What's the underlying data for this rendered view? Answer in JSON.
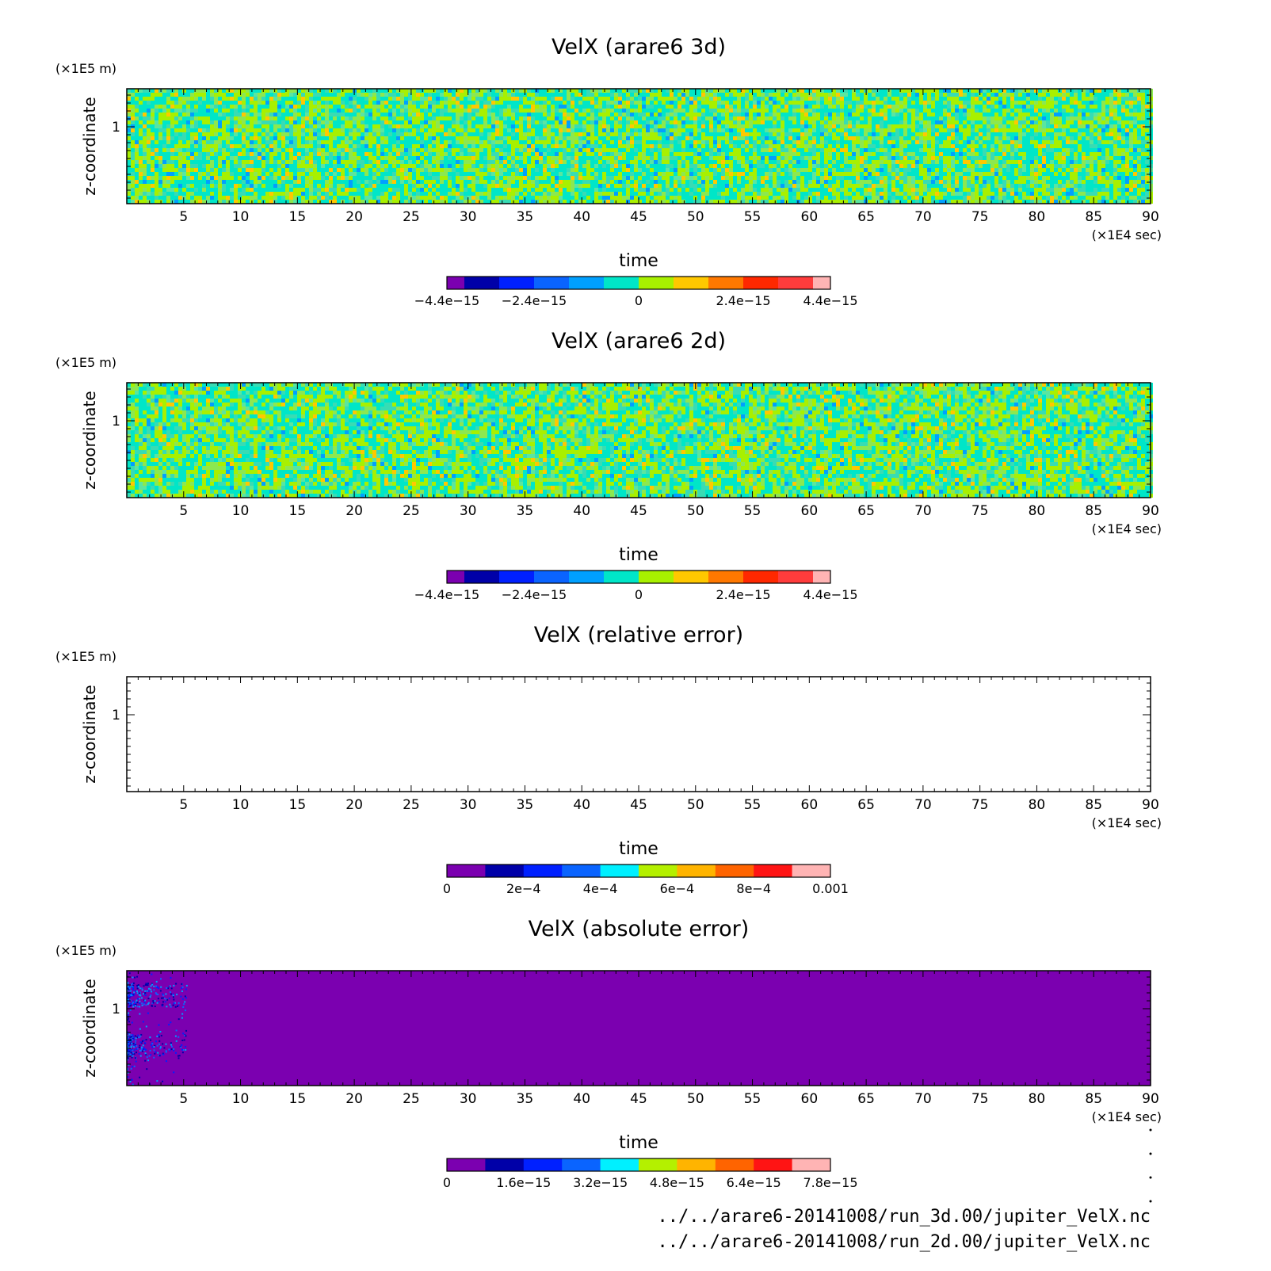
{
  "chart_data": [
    {
      "type": "heatmap",
      "title": "VelX (arare6 3d)",
      "xlabel": "time",
      "x_unit": "(×1E4 sec)",
      "ylabel": "z-coordinate",
      "y_unit": "(×1E5 m)",
      "xlim": [
        0,
        90
      ],
      "x_ticks": [
        "5",
        "10",
        "15",
        "20",
        "25",
        "30",
        "35",
        "40",
        "45",
        "50",
        "55",
        "60",
        "65",
        "70",
        "75",
        "80",
        "85",
        "90"
      ],
      "y_ticks": [
        "1"
      ],
      "field": "noise",
      "colorbar": {
        "colors": [
          "#7b00b0",
          "#0000a8",
          "#0020ff",
          "#0a64ff",
          "#00a0ff",
          "#00e6c8",
          "#a8f000",
          "#ffc800",
          "#ff7800",
          "#ff2800",
          "#ff3c3c",
          "#ffb4b4"
        ],
        "labels": [
          "−4.4e−15",
          "−2.4e−15",
          "0",
          "2.4e−15",
          "4.4e−15"
        ]
      }
    },
    {
      "type": "heatmap",
      "title": "VelX (arare6 2d)",
      "xlabel": "time",
      "x_unit": "(×1E4 sec)",
      "ylabel": "z-coordinate",
      "y_unit": "(×1E5 m)",
      "xlim": [
        0,
        90
      ],
      "x_ticks": [
        "5",
        "10",
        "15",
        "20",
        "25",
        "30",
        "35",
        "40",
        "45",
        "50",
        "55",
        "60",
        "65",
        "70",
        "75",
        "80",
        "85",
        "90"
      ],
      "y_ticks": [
        "1"
      ],
      "field": "noise",
      "colorbar": {
        "colors": [
          "#7b00b0",
          "#0000a8",
          "#0020ff",
          "#0a64ff",
          "#00a0ff",
          "#00e6c8",
          "#a8f000",
          "#ffc800",
          "#ff7800",
          "#ff2800",
          "#ff3c3c",
          "#ffb4b4"
        ],
        "labels": [
          "−4.4e−15",
          "−2.4e−15",
          "0",
          "2.4e−15",
          "4.4e−15"
        ]
      }
    },
    {
      "type": "heatmap",
      "title": "VelX (relative error)",
      "xlabel": "time",
      "x_unit": "(×1E4 sec)",
      "ylabel": "z-coordinate",
      "y_unit": "(×1E5 m)",
      "xlim": [
        0,
        90
      ],
      "x_ticks": [
        "5",
        "10",
        "15",
        "20",
        "25",
        "30",
        "35",
        "40",
        "45",
        "50",
        "55",
        "60",
        "65",
        "70",
        "75",
        "80",
        "85",
        "90"
      ],
      "y_ticks": [
        "1"
      ],
      "field": "empty",
      "colorbar": {
        "colors": [
          "#7b00b0",
          "#0000a8",
          "#0020ff",
          "#0a64ff",
          "#00f0ff",
          "#b4f000",
          "#ffb400",
          "#ff6400",
          "#ff1414",
          "#ffb4b4"
        ],
        "labels": [
          "0",
          "2e−4",
          "4e−4",
          "6e−4",
          "8e−4",
          "0.001"
        ]
      }
    },
    {
      "type": "heatmap",
      "title": "VelX (absolute error)",
      "xlabel": "time",
      "x_unit": "(×1E4 sec)",
      "ylabel": "z-coordinate",
      "y_unit": "(×1E5 m)",
      "xlim": [
        0,
        90
      ],
      "x_ticks": [
        "5",
        "10",
        "15",
        "20",
        "25",
        "30",
        "35",
        "40",
        "45",
        "50",
        "55",
        "60",
        "65",
        "70",
        "75",
        "80",
        "85",
        "90"
      ],
      "y_ticks": [
        "1"
      ],
      "field": "mostly-zero",
      "colorbar": {
        "colors": [
          "#7b00b0",
          "#0000a8",
          "#0020ff",
          "#0a64ff",
          "#00f0ff",
          "#b4f000",
          "#ffb400",
          "#ff6400",
          "#ff1414",
          "#ffb4b4"
        ],
        "labels": [
          "0",
          "1.6e−15",
          "3.2e−15",
          "4.8e−15",
          "6.4e−15",
          "7.8e−15"
        ]
      }
    }
  ],
  "footer": {
    "file_3d": "../../arare6-20141008/run_3d.00/jupiter_VelX.nc",
    "file_2d": "../../arare6-20141008/run_2d.00/jupiter_VelX.nc"
  }
}
